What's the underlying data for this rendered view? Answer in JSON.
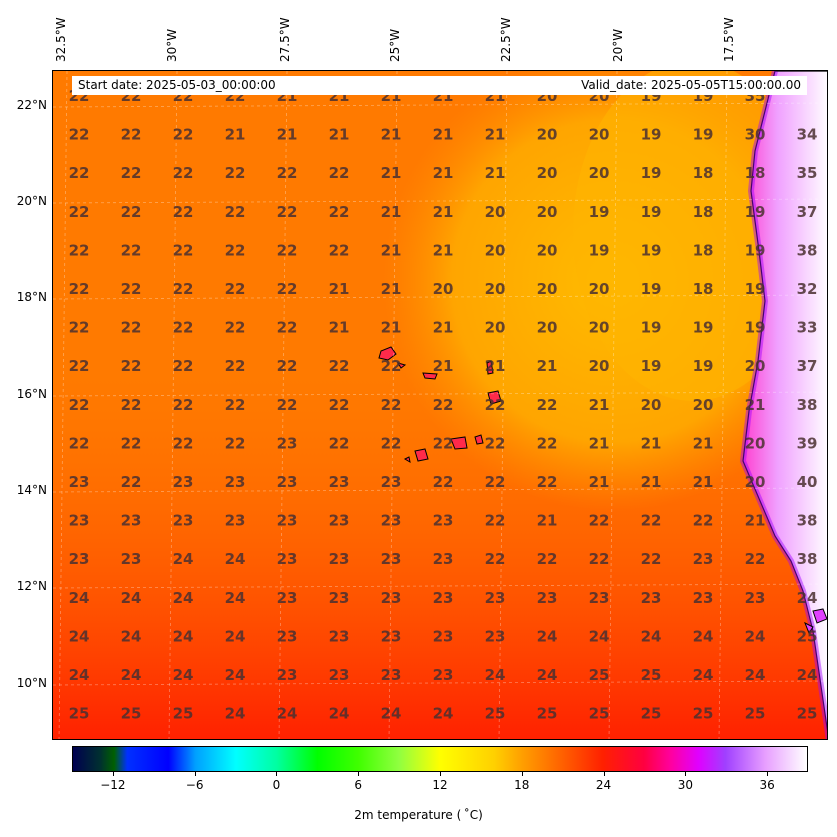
{
  "header": {
    "start_date": "Start date: 2025-05-03_00:00:00",
    "valid_date": "Valid_date: 2025-05-05T15:00:00.00"
  },
  "longitude_labels": [
    "32.5°W",
    "30°W",
    "27.5°W",
    "25°W",
    "22.5°W",
    "20°W",
    "17.5°W"
  ],
  "latitude_labels": [
    "22°N",
    "20°N",
    "18°N",
    "16°N",
    "14°N",
    "12°N",
    "10°N"
  ],
  "colorbar": {
    "title": "2m temperature ( ˚C)",
    "tick_labels": [
      "−12",
      "−6",
      "0",
      "6",
      "12",
      "18",
      "24",
      "30",
      "36"
    ],
    "range": [
      -15,
      39
    ]
  },
  "colors": {
    "sea_orange": "#ff7a00",
    "cool_yellow": "#ffb000",
    "warm_red": "#ff3000",
    "land_hot": "#e040ff",
    "island": "#ff1a6e"
  },
  "grid_values": [
    [
      "22",
      "22",
      "22",
      "22",
      "21",
      "21",
      "21",
      "21",
      "21",
      "20",
      "20",
      "19",
      "19",
      "35"
    ],
    [
      "22",
      "22",
      "22",
      "21",
      "21",
      "21",
      "21",
      "21",
      "21",
      "20",
      "20",
      "19",
      "19",
      "30",
      "34"
    ],
    [
      "22",
      "22",
      "22",
      "22",
      "22",
      "22",
      "21",
      "21",
      "21",
      "20",
      "20",
      "19",
      "18",
      "18",
      "35"
    ],
    [
      "22",
      "22",
      "22",
      "22",
      "22",
      "22",
      "21",
      "21",
      "20",
      "20",
      "19",
      "19",
      "18",
      "19",
      "37"
    ],
    [
      "22",
      "22",
      "22",
      "22",
      "22",
      "22",
      "21",
      "21",
      "20",
      "20",
      "19",
      "19",
      "18",
      "19",
      "38"
    ],
    [
      "22",
      "22",
      "22",
      "22",
      "22",
      "21",
      "21",
      "20",
      "20",
      "20",
      "20",
      "19",
      "18",
      "19",
      "32"
    ],
    [
      "22",
      "22",
      "22",
      "22",
      "22",
      "21",
      "21",
      "21",
      "20",
      "20",
      "20",
      "19",
      "19",
      "19",
      "33"
    ],
    [
      "22",
      "22",
      "22",
      "22",
      "22",
      "22",
      "22",
      "21",
      "21",
      "21",
      "20",
      "19",
      "19",
      "20",
      "37"
    ],
    [
      "22",
      "22",
      "22",
      "22",
      "22",
      "22",
      "22",
      "22",
      "22",
      "22",
      "21",
      "20",
      "20",
      "21",
      "38"
    ],
    [
      "22",
      "22",
      "22",
      "22",
      "23",
      "22",
      "22",
      "22",
      "22",
      "22",
      "21",
      "21",
      "21",
      "20",
      "39"
    ],
    [
      "23",
      "22",
      "23",
      "23",
      "23",
      "23",
      "23",
      "22",
      "22",
      "22",
      "21",
      "21",
      "21",
      "20",
      "40"
    ],
    [
      "23",
      "23",
      "23",
      "23",
      "23",
      "23",
      "23",
      "23",
      "22",
      "21",
      "22",
      "22",
      "22",
      "21",
      "38"
    ],
    [
      "23",
      "23",
      "24",
      "24",
      "23",
      "23",
      "23",
      "23",
      "22",
      "22",
      "22",
      "22",
      "23",
      "22",
      "38"
    ],
    [
      "24",
      "24",
      "24",
      "24",
      "23",
      "23",
      "23",
      "23",
      "23",
      "23",
      "23",
      "23",
      "23",
      "23",
      "24"
    ],
    [
      "24",
      "24",
      "24",
      "24",
      "23",
      "23",
      "23",
      "23",
      "23",
      "24",
      "24",
      "24",
      "24",
      "24",
      "25"
    ],
    [
      "24",
      "24",
      "24",
      "24",
      "23",
      "23",
      "23",
      "23",
      "24",
      "24",
      "25",
      "25",
      "24",
      "24",
      "24"
    ],
    [
      "25",
      "25",
      "25",
      "24",
      "24",
      "24",
      "24",
      "24",
      "25",
      "25",
      "25",
      "25",
      "25",
      "25",
      "25"
    ]
  ]
}
